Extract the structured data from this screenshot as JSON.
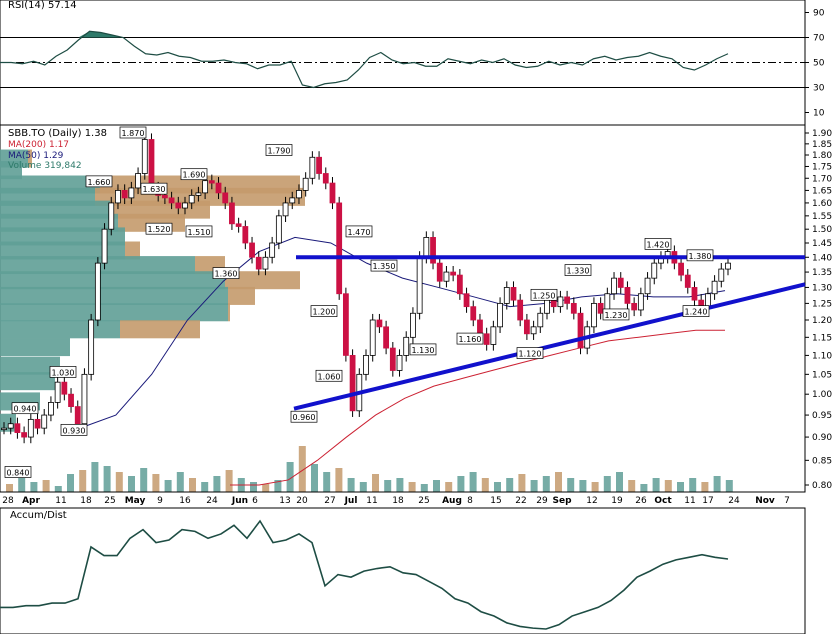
{
  "rsi_panel": {
    "label": "RSI(14) 57.14",
    "ticks": [
      "90",
      "70",
      "50",
      "30",
      "10"
    ]
  },
  "price_panel": {
    "legend": {
      "symbol": "SBB.TO (Daily) 1.38",
      "ma200": "MA(200) 1.17",
      "ma50": "MA(50) 1.29",
      "volume": "Volume 319,842"
    },
    "price_ticks": [
      "1.90",
      "1.85",
      "1.80",
      "1.75",
      "1.70",
      "1.65",
      "1.60",
      "1.55",
      "1.50",
      "1.45",
      "1.40",
      "1.35",
      "1.30",
      "1.25",
      "1.20",
      "1.15",
      "1.10",
      "1.05",
      "1.00",
      "0.95",
      "0.90",
      "0.85",
      "0.80"
    ],
    "date_ticks": [
      "28",
      "Apr",
      "11",
      "18",
      "25",
      "May",
      "9",
      "16",
      "24",
      "Jun",
      "6",
      "13",
      "20",
      "27",
      "Jul",
      "11",
      "18",
      "25",
      "Aug",
      "8",
      "15",
      "22",
      "29",
      "Sep",
      "12",
      "19",
      "26",
      "Oct",
      "11",
      "17",
      "24",
      "Nov",
      "7"
    ]
  },
  "ad_panel": {
    "label": "Accum/Dist"
  },
  "colors": {
    "up_candle": "#ffffff",
    "down_candle": "#cc1144",
    "ma200": "#cc2233",
    "ma50": "#1a1a7a",
    "trendline": "#1111cc",
    "vbp_up": "#5f9e96",
    "vbp_down": "#c49a6c",
    "rsi_line": "#1e4d44",
    "rsi_fill": "#2e7a6a"
  },
  "chart_data": [
    {
      "type": "line",
      "name": "RSI(14)",
      "ylim": [
        0,
        100
      ],
      "reference_lines": [
        70,
        50,
        30
      ],
      "series": [
        {
          "values": [
            50,
            50,
            49,
            51,
            48,
            55,
            60,
            68,
            75,
            74,
            72,
            70,
            63,
            57,
            56,
            58,
            55,
            54,
            51,
            51,
            52,
            50,
            49,
            45,
            48,
            48,
            51,
            32,
            30,
            33,
            34,
            36,
            44,
            54,
            58,
            52,
            49,
            50,
            47,
            47,
            53,
            51,
            49,
            52,
            50,
            53,
            48,
            46,
            47,
            51,
            48,
            50,
            48,
            53,
            55,
            52,
            54,
            55,
            58,
            55,
            53,
            46,
            44,
            48,
            53,
            57
          ]
        }
      ]
    },
    {
      "type": "candlestick",
      "name": "SBB.TO (Daily)",
      "ylim": [
        0.8,
        1.9
      ],
      "y_scale": "log",
      "annotations": [
        "1.870",
        "1.660",
        "1.630",
        "1.690",
        "1.790",
        "1.520",
        "1.510",
        "1.360",
        "1.470",
        "1.350",
        "1.200",
        "1.060",
        "0.960",
        "1.130",
        "1.160",
        "1.120",
        "1.250",
        "1.330",
        "1.230",
        "1.420",
        "1.380",
        "1.240",
        "1.030",
        "0.940",
        "0.930",
        "0.840"
      ],
      "series": [
        {
          "name": "MA(200)",
          "values": [
            0.8,
            0.8,
            0.81,
            0.85,
            0.9,
            0.95,
            0.99,
            1.02,
            1.04,
            1.06,
            1.08,
            1.1,
            1.12,
            1.14,
            1.15,
            1.16,
            1.17,
            1.17
          ]
        },
        {
          "name": "MA(50)",
          "values": [
            0.92,
            0.95,
            1.05,
            1.2,
            1.32,
            1.42,
            1.47,
            1.45,
            1.38,
            1.33,
            1.3,
            1.27,
            1.24,
            1.25,
            1.27,
            1.28,
            1.27,
            1.27,
            1.29
          ]
        }
      ],
      "trendlines": [
        {
          "from": 1.4,
          "to": 1.4
        },
        {
          "from": 0.96,
          "to": 1.31
        }
      ]
    },
    {
      "type": "line",
      "name": "Accum/Dist",
      "series": [
        {
          "values": [
            50,
            50,
            52,
            52,
            55,
            55,
            60,
            120,
            110,
            110,
            130,
            140,
            125,
            128,
            140,
            138,
            130,
            135,
            145,
            130,
            150,
            125,
            128,
            135,
            125,
            75,
            88,
            85,
            92,
            95,
            97,
            90,
            88,
            80,
            72,
            60,
            55,
            45,
            40,
            32,
            28,
            26,
            25,
            30,
            40,
            45,
            50,
            58,
            70,
            85,
            92,
            100,
            105,
            108,
            111,
            108,
            106
          ]
        }
      ]
    }
  ]
}
